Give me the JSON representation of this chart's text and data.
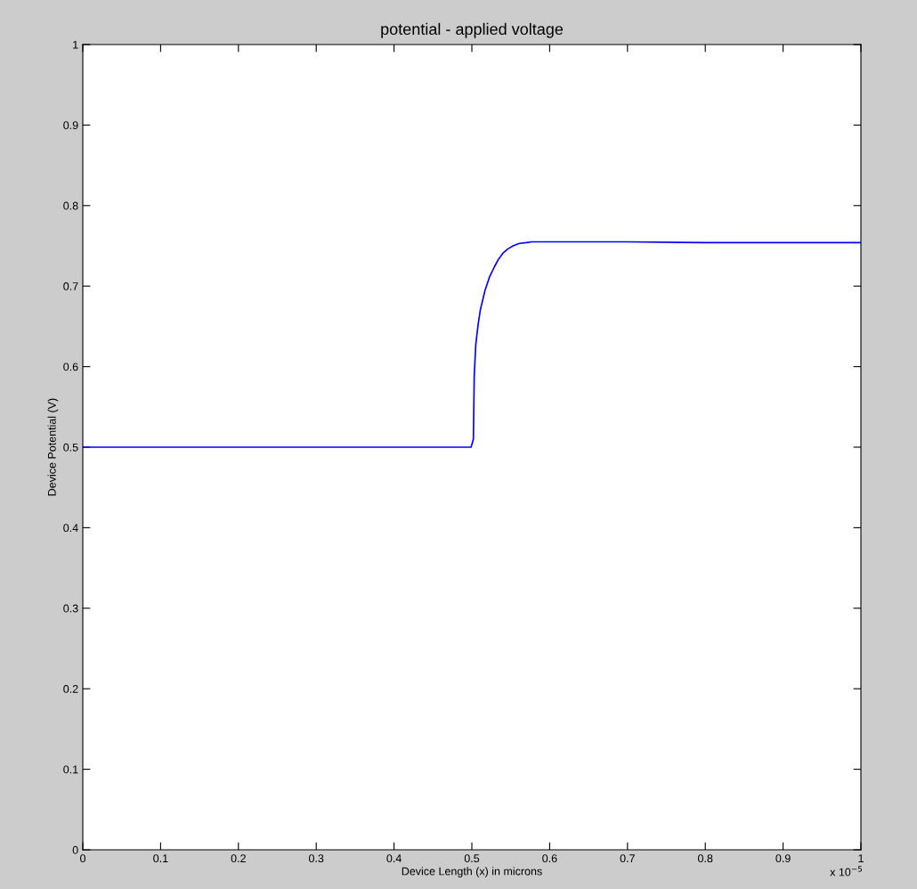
{
  "chart_data": {
    "type": "line",
    "title": "potential - applied voltage",
    "xlabel": "Device Length (x) in microns",
    "ylabel": "Device Potential (V)",
    "annotations": [
      "x 10$^{−5}$"
    ],
    "series": [
      {
        "color": "#0000ff",
        "x": [
          0,
          0.1,
          0.2,
          0.3,
          0.4,
          0.499,
          0.502,
          0.503,
          0.505,
          0.508,
          0.511,
          0.517,
          0.523,
          0.529,
          0.534,
          0.54,
          0.546,
          0.553,
          0.561,
          0.57,
          0.577,
          0.6,
          0.7,
          0.8,
          0.9,
          1.0
        ],
        "values": [
          0.5,
          0.5,
          0.5,
          0.5,
          0.5,
          0.5,
          0.51,
          0.587,
          0.627,
          0.652,
          0.671,
          0.695,
          0.712,
          0.724,
          0.733,
          0.741,
          0.746,
          0.75,
          0.753,
          0.754,
          0.755,
          0.755,
          0.755,
          0.754,
          0.754,
          0.754
        ]
      }
    ],
    "xlim": [
      0,
      1
    ],
    "ylim": [
      0,
      1
    ],
    "xticks": [
      0,
      0.1,
      0.2,
      0.3,
      0.4,
      0.5,
      0.6,
      0.7,
      0.8,
      0.9,
      1
    ],
    "yticks": [
      0,
      0.1,
      0.2,
      0.3,
      0.4,
      0.5,
      0.6,
      0.7,
      0.8,
      0.9,
      1
    ],
    "grid": false,
    "marker": "none",
    "line_style": "solid"
  }
}
